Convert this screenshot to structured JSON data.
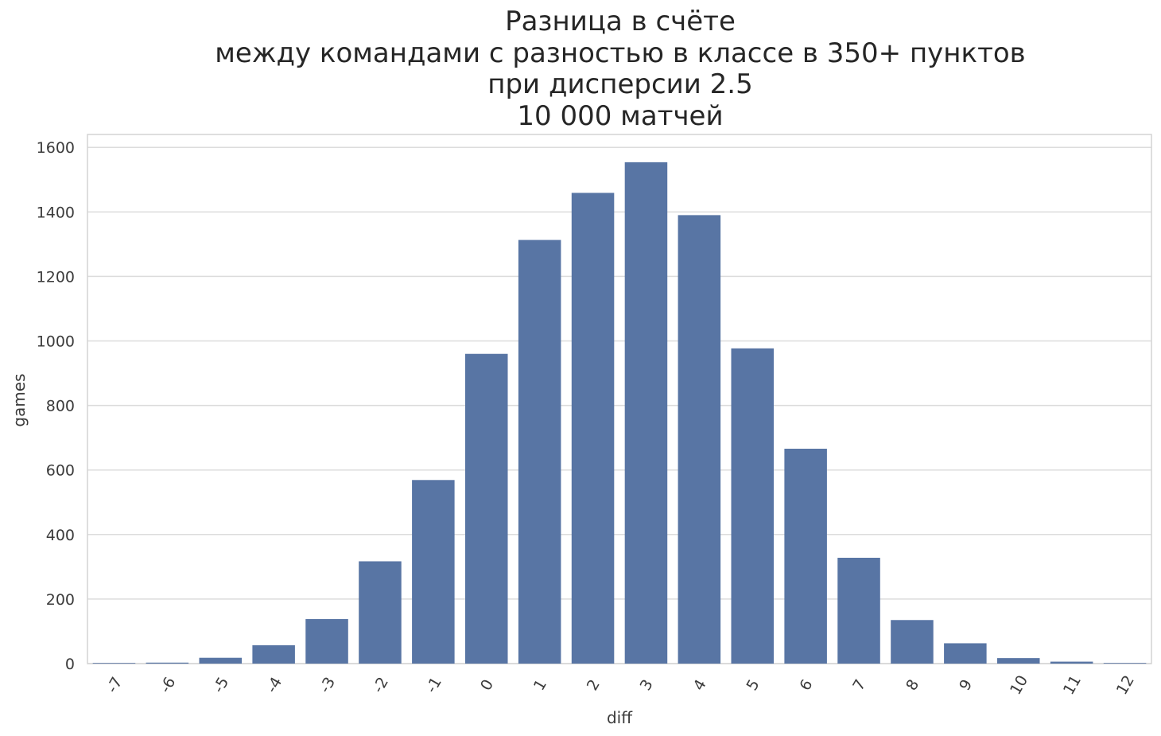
{
  "chart_data": {
    "type": "bar",
    "title_lines": [
      "Разница в счёте",
      "между командами с разностью в классе в 350+ пунктов",
      "при дисперсии 2.5",
      "10 000 матчей"
    ],
    "xlabel": "diff",
    "ylabel": "games",
    "categories": [
      "-7",
      "-6",
      "-5",
      "-4",
      "-3",
      "-2",
      "-1",
      "0",
      "1",
      "2",
      "3",
      "4",
      "5",
      "6",
      "7",
      "8",
      "9",
      "10",
      "11",
      "12"
    ],
    "values": [
      2,
      3,
      18,
      57,
      138,
      317,
      569,
      960,
      1313,
      1459,
      1554,
      1390,
      977,
      666,
      328,
      135,
      63,
      17,
      6,
      2
    ],
    "ylim": [
      0,
      1640
    ],
    "yticks": [
      "0",
      "200",
      "400",
      "600",
      "800",
      "1000",
      "1200",
      "1400",
      "1600"
    ],
    "bar_color": "#5875a4",
    "grid": true,
    "grid_color": "#dcdcdc",
    "xtick_rotation": "-60deg"
  }
}
